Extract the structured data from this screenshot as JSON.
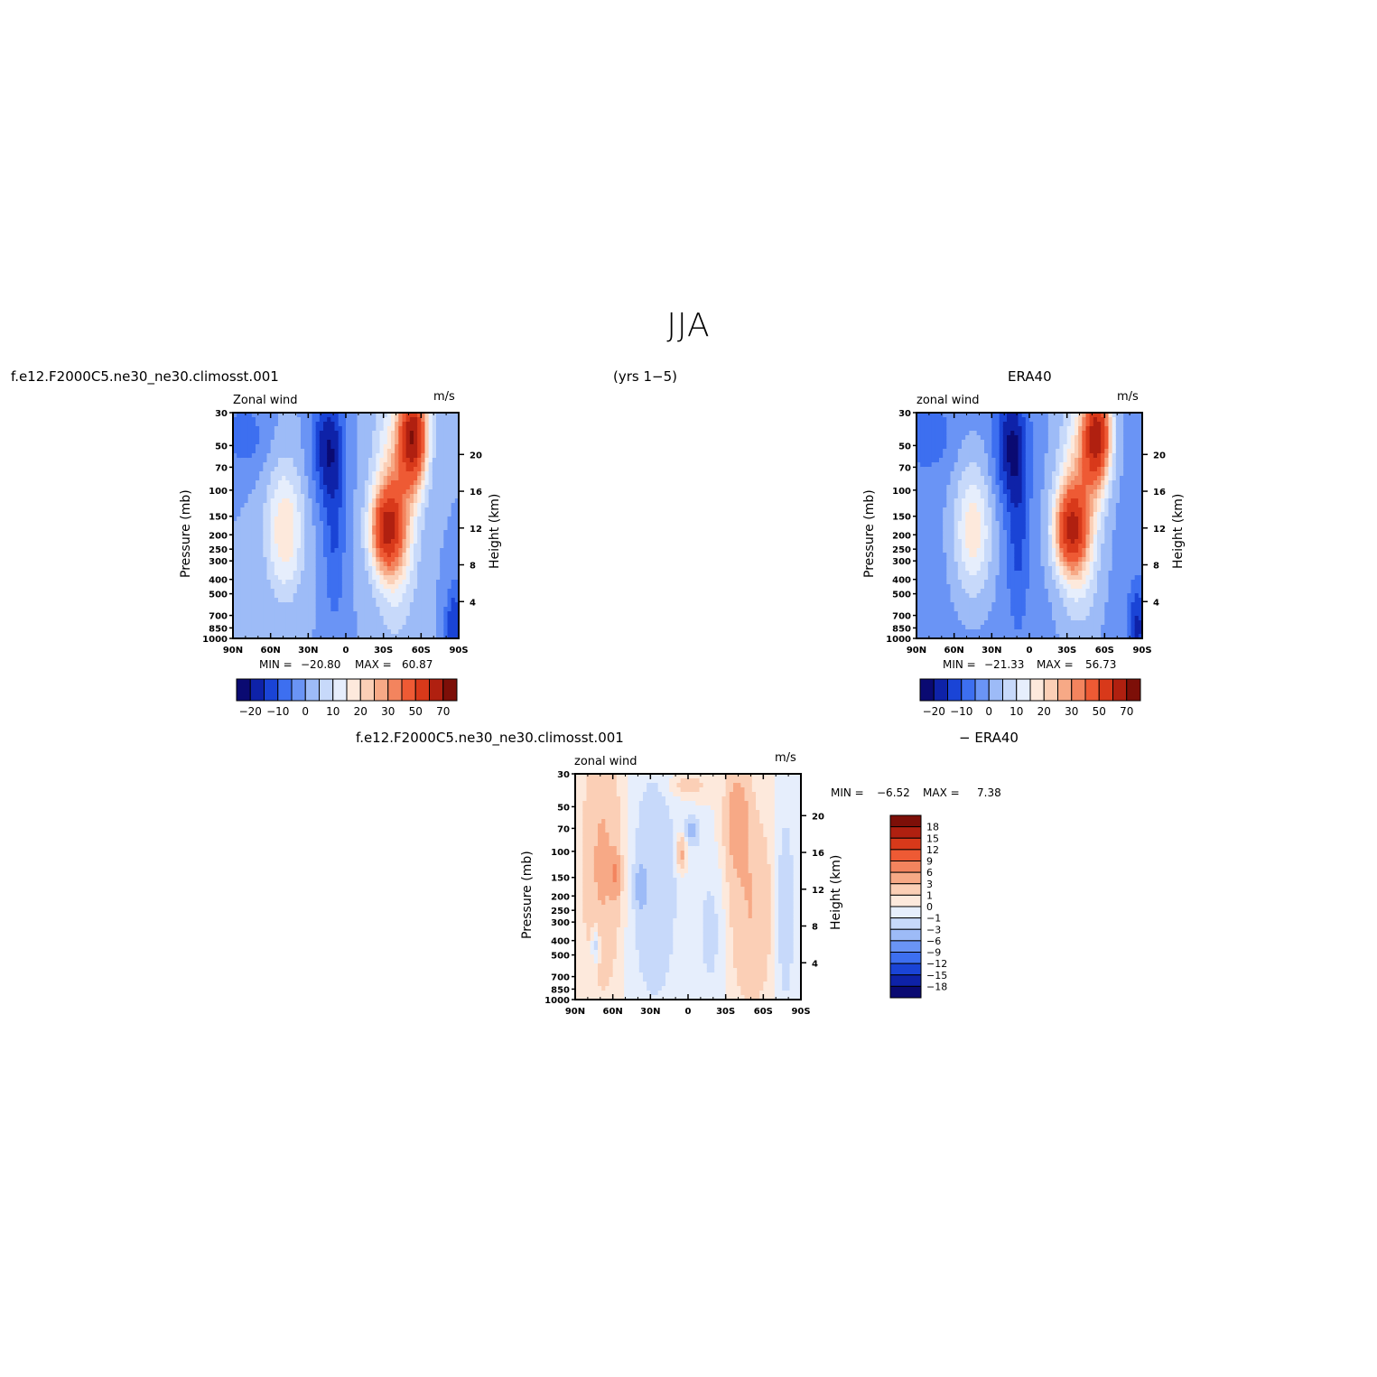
{
  "page": {
    "title": "JJA",
    "case_name": "f.e12.F2000C5.ne30_ne30.climosst.001",
    "years": "(yrs 1−5)",
    "obs_name": "ERA40",
    "diff_case_name": "f.e12.F2000C5.ne30_ne30.climosst.001",
    "diff_obs_name": "− ERA40"
  },
  "chart_data": [
    {
      "type": "heatmap",
      "id": "model",
      "title": "Zonal wind",
      "units": "m/s",
      "x_tick_labels": [
        "90N",
        "60N",
        "30N",
        "0",
        "30S",
        "60S",
        "90S"
      ],
      "ylabel_left": "Pressure (mb)",
      "ylabel_right": "Height (km)",
      "pressure_ticks": [
        "30",
        "50",
        "70",
        "100",
        "150",
        "200",
        "250",
        "300",
        "400",
        "500",
        "700",
        "850",
        "1000"
      ],
      "height_ticks": [
        "20",
        "16",
        "12",
        "8",
        "4"
      ],
      "min_label": "MIN =",
      "min_value": "−20.80",
      "max_label": "MAX =",
      "max_value": "60.87",
      "levels": [
        -25,
        -20,
        -15,
        -10,
        -5,
        0,
        5,
        10,
        15,
        20,
        25,
        30,
        40,
        50,
        60,
        70
      ],
      "colorbar_labels": [
        "−20",
        "−10",
        "0",
        "10",
        "20",
        "30",
        "50",
        "70"
      ]
    },
    {
      "type": "heatmap",
      "id": "obs",
      "title": "zonal wind",
      "units": "m/s",
      "x_tick_labels": [
        "90N",
        "60N",
        "30N",
        "0",
        "30S",
        "60S",
        "90S"
      ],
      "ylabel_left": "Pressure (mb)",
      "ylabel_right": "Height (km)",
      "pressure_ticks": [
        "30",
        "50",
        "70",
        "100",
        "150",
        "200",
        "250",
        "300",
        "400",
        "500",
        "700",
        "850",
        "1000"
      ],
      "height_ticks": [
        "20",
        "16",
        "12",
        "8",
        "4"
      ],
      "min_label": "MIN =",
      "min_value": "−21.33",
      "max_label": "MAX =",
      "max_value": "56.73",
      "levels": [
        -25,
        -20,
        -15,
        -10,
        -5,
        0,
        5,
        10,
        15,
        20,
        25,
        30,
        40,
        50,
        60,
        70
      ],
      "colorbar_labels": [
        "−20",
        "−10",
        "0",
        "10",
        "20",
        "30",
        "50",
        "70"
      ]
    },
    {
      "type": "heatmap",
      "id": "diff",
      "title": "zonal wind",
      "units": "m/s",
      "x_tick_labels": [
        "90N",
        "60N",
        "30N",
        "0",
        "30S",
        "60S",
        "90S"
      ],
      "ylabel_left": "Pressure (mb)",
      "ylabel_right": "Height (km)",
      "pressure_ticks": [
        "30",
        "50",
        "70",
        "100",
        "150",
        "200",
        "250",
        "300",
        "400",
        "500",
        "700",
        "850",
        "1000"
      ],
      "height_ticks": [
        "20",
        "16",
        "12",
        "8",
        "4"
      ],
      "min_label": "MIN =",
      "min_value": "−6.52",
      "max_label": "MAX =",
      "max_value": "7.38",
      "levels": [
        -18,
        -15,
        -12,
        -9,
        -6,
        -3,
        -1,
        0,
        1,
        3,
        6,
        9,
        12,
        15,
        18
      ],
      "colorbar_labels": [
        "18",
        "15",
        "12",
        "9",
        "6",
        "3",
        "1",
        "0",
        "−1",
        "−3",
        "−6",
        "−9",
        "−12",
        "−15",
        "−18"
      ]
    }
  ],
  "colors": {
    "abs_palette": [
      "#0a0a72",
      "#0e22a8",
      "#1a44d6",
      "#3d6ff0",
      "#6a94f5",
      "#9dbbf7",
      "#c7d9fa",
      "#e6eefc",
      "#fde9dc",
      "#fbcfb6",
      "#f7a986",
      "#f3845e",
      "#ee5a34",
      "#d8391a",
      "#b02010",
      "#7d0f08"
    ],
    "diff_palette": [
      "#0a0a72",
      "#0e22a8",
      "#1a44d6",
      "#3d6ff0",
      "#6a94f5",
      "#9dbbf7",
      "#c7d9fa",
      "#e6eefc",
      "#fde9dc",
      "#fbcfb6",
      "#f7a986",
      "#f3845e",
      "#ee5a34",
      "#d8391a",
      "#b02010",
      "#7d0f08"
    ]
  }
}
